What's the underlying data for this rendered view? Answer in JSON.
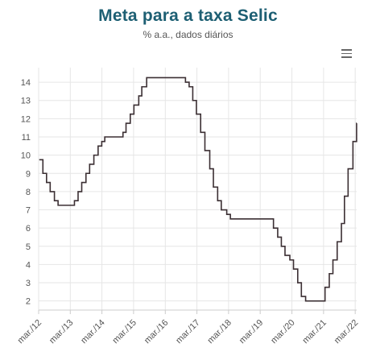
{
  "chart": {
    "title": "Meta para a taxa Selic",
    "subtitle": "% a.a., dados diários",
    "menu_icon": "hamburger-menu-icon"
  },
  "colors": {
    "title": "#1d5f73",
    "line": "#3b2f33",
    "grid": "#e6e6e6",
    "axis": "#cccccc"
  },
  "chart_data": {
    "type": "line",
    "title": "Meta para a taxa Selic",
    "subtitle": "% a.a., dados diários",
    "xlabel": "",
    "ylabel": "",
    "xlim": [
      "2012-03-01",
      "2022-03-18"
    ],
    "ylim": [
      1.5,
      14.8
    ],
    "grid": true,
    "legend": "none",
    "x_tick_labels": [
      "mar./12",
      "mar./13",
      "mar./14",
      "mar./15",
      "mar./16",
      "mar./17",
      "mar./18",
      "mar./19",
      "mar./20",
      "mar./21",
      "mar./22"
    ],
    "y_ticks": [
      2,
      3,
      4,
      5,
      6,
      7,
      8,
      9,
      10,
      11,
      12,
      13,
      14
    ],
    "series": [
      {
        "step": true,
        "x": [
          "2012-03-08",
          "2012-04-19",
          "2012-05-31",
          "2012-07-12",
          "2012-08-30",
          "2012-10-11",
          "2013-04-18",
          "2013-05-30",
          "2013-07-11",
          "2013-08-29",
          "2013-10-10",
          "2013-11-28",
          "2014-01-16",
          "2014-02-27",
          "2014-04-03",
          "2014-10-30",
          "2014-12-04",
          "2015-01-22",
          "2015-03-05",
          "2015-04-30",
          "2015-06-04",
          "2015-07-30",
          "2016-10-20",
          "2016-12-01",
          "2017-01-12",
          "2017-02-23",
          "2017-04-13",
          "2017-06-01",
          "2017-07-27",
          "2017-09-07",
          "2017-10-26",
          "2017-12-07",
          "2018-02-08",
          "2018-03-22",
          "2019-08-01",
          "2019-09-19",
          "2019-10-31",
          "2019-12-12",
          "2020-02-06",
          "2020-03-19",
          "2020-05-07",
          "2020-06-18",
          "2020-08-06",
          "2021-03-18",
          "2021-05-06",
          "2021-06-17",
          "2021-08-05",
          "2021-09-23",
          "2021-10-28",
          "2021-12-09",
          "2022-02-03",
          "2022-03-17"
        ],
        "values": [
          9.75,
          9.0,
          8.5,
          8.0,
          7.5,
          7.25,
          7.5,
          8.0,
          8.5,
          9.0,
          9.5,
          10.0,
          10.5,
          10.75,
          11.0,
          11.25,
          11.75,
          12.25,
          12.75,
          13.25,
          13.75,
          14.25,
          14.0,
          13.75,
          13.0,
          12.25,
          11.25,
          10.25,
          9.25,
          8.25,
          7.5,
          7.0,
          6.75,
          6.5,
          6.0,
          5.5,
          5.0,
          4.5,
          4.25,
          3.75,
          3.0,
          2.25,
          2.0,
          2.75,
          3.5,
          4.25,
          5.25,
          6.25,
          7.75,
          9.25,
          10.75,
          11.75
        ]
      }
    ]
  }
}
